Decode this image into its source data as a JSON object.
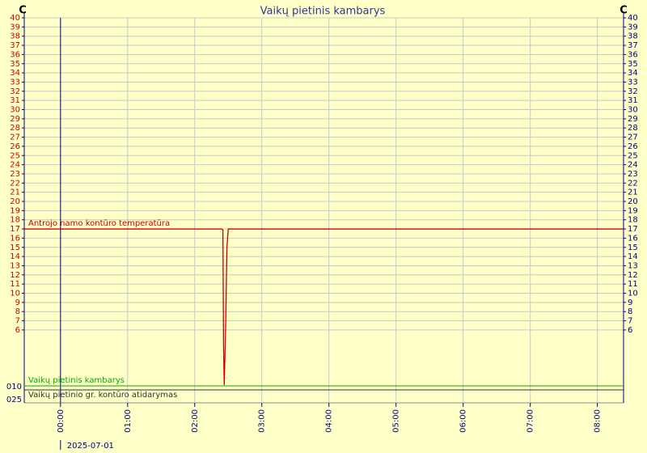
{
  "chart_data": {
    "type": "line",
    "title": "Vaikų pietinis kambarys",
    "y_unit": "C",
    "date": "2025-07-01",
    "x": [
      -0.54,
      2.4,
      2.42,
      2.43,
      2.44,
      2.46,
      2.48,
      2.5,
      8.39
    ],
    "series": [
      {
        "name": "Antrojo namo kontūro temperatūra",
        "color": "#cc0000",
        "values": [
          17,
          17,
          16.9,
          4,
          0,
          6,
          15,
          17,
          17
        ]
      }
    ],
    "status_lines": [
      {
        "name": "Vaikų pietinis kambarys",
        "color": "#00aa00"
      },
      {
        "name": "Vaikų pietinio gr. kontūro atidarymas",
        "color": "#333333"
      }
    ],
    "bottom_labels": [
      "010",
      "025"
    ],
    "xlim": [
      -0.54,
      8.39
    ],
    "xticks": [
      {
        "value": 0,
        "label": "00:00"
      },
      {
        "value": 1,
        "label": "01:00"
      },
      {
        "value": 2,
        "label": "02:00"
      },
      {
        "value": 3,
        "label": "03:00"
      },
      {
        "value": 4,
        "label": "04:00"
      },
      {
        "value": 5,
        "label": "05:00"
      },
      {
        "value": 6,
        "label": "06:00"
      },
      {
        "value": 7,
        "label": "07:00"
      },
      {
        "value": 8,
        "label": "08:00"
      }
    ],
    "ylim": [
      0,
      40
    ],
    "yticks": [
      40,
      39,
      38,
      37,
      36,
      35,
      34,
      33,
      32,
      31,
      30,
      29,
      28,
      27,
      26,
      25,
      24,
      23,
      22,
      21,
      20,
      19,
      18,
      17,
      16,
      15,
      14,
      13,
      12,
      11,
      10,
      9,
      8,
      7,
      6
    ],
    "grid": true
  }
}
